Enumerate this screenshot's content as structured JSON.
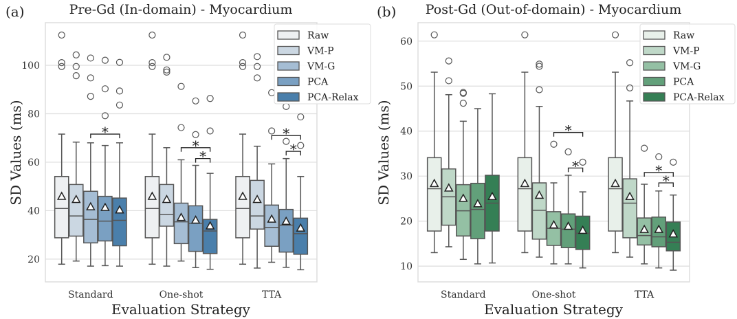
{
  "chart_data": [
    {
      "type": "box",
      "panel_label": "(a)",
      "title": "Pre-Gd (In-domain) - Myocardium",
      "xlabel": "Evaluation Strategy",
      "ylabel": "SD Values (ms)",
      "ylim": [
        10.6,
        117.6
      ],
      "yticks": [
        20,
        40,
        60,
        80,
        100
      ],
      "grid": true,
      "legend": "top-right",
      "categories": [
        "Standard",
        "One-shot",
        "TTA"
      ],
      "colors": [
        "#eef0f2",
        "#cbd7e2",
        "#a5bdd4",
        "#7aa0c2",
        "#4a7fab"
      ],
      "series": [
        {
          "name": "Raw",
          "values": [
            {
              "whislo": 17.9,
              "q1": 28.8,
              "med": 40.9,
              "q3": 54.1,
              "whishi": 71.6,
              "mean": 45.8,
              "fliers": [
                112.5,
                101.1,
                99.5
              ]
            },
            {
              "whislo": 17.9,
              "q1": 28.8,
              "med": 40.9,
              "q3": 54.1,
              "whishi": 71.6,
              "mean": 45.8,
              "fliers": [
                112.5,
                101.1,
                99.5
              ]
            },
            {
              "whislo": 17.9,
              "q1": 28.8,
              "med": 40.9,
              "q3": 54.1,
              "whishi": 71.6,
              "mean": 45.8,
              "fliers": [
                112.5,
                101.1,
                99.5
              ]
            }
          ]
        },
        {
          "name": "VM-P",
          "values": [
            {
              "whislo": 19.2,
              "q1": 29.5,
              "med": 37.8,
              "q3": 50.8,
              "whishi": 68.3,
              "mean": 44.5,
              "fliers": [
                104.3,
                99.5,
                95.7
              ]
            },
            {
              "whislo": 17.1,
              "q1": 33.6,
              "med": 38.5,
              "q3": 50.8,
              "whishi": 66.0,
              "mean": 44.5,
              "fliers": [
                103.3,
                98.1,
                97.2
              ]
            },
            {
              "whislo": 16.3,
              "q1": 32.4,
              "med": 37.8,
              "q3": 52.5,
              "whishi": 66.6,
              "mean": 44.5,
              "fliers": [
                103.6,
                99.5,
                94.8
              ]
            }
          ]
        },
        {
          "name": "VM-G",
          "values": [
            {
              "whislo": 17.1,
              "q1": 26.7,
              "med": 36.4,
              "q3": 48.0,
              "whishi": 68.0,
              "mean": 41.5,
              "fliers": [
                103.0,
                94.8,
                87.2
              ]
            },
            {
              "whislo": 19.2,
              "q1": 26.4,
              "med": 35.4,
              "q3": 43.1,
              "whishi": 61.0,
              "mean": 37.1,
              "fliers": [
                91.3,
                74.3
              ]
            },
            {
              "whislo": 18.7,
              "q1": 25.3,
              "med": 33.1,
              "q3": 42.3,
              "whishi": 59.3,
              "mean": 36.4,
              "fliers": [
                88.7,
                72.9
              ]
            }
          ]
        },
        {
          "name": "PCA",
          "values": [
            {
              "whislo": 17.3,
              "q1": 27.5,
              "med": 35.7,
              "q3": 45.9,
              "whishi": 66.9,
              "mean": 41.2,
              "fliers": [
                102.1,
                90.3,
                79.2
              ]
            },
            {
              "whislo": 16.5,
              "q1": 23.2,
              "med": 34.8,
              "q3": 42.0,
              "whishi": 58.7,
              "mean": 36.0,
              "fliers": [
                85.3,
                71.4
              ]
            },
            {
              "whislo": 16.6,
              "q1": 22.9,
              "med": 34.0,
              "q3": 40.5,
              "whishi": 61.5,
              "mean": 35.5,
              "fliers": [
                83.0,
                68.6
              ]
            }
          ]
        },
        {
          "name": "PCA-Relax",
          "values": [
            {
              "whislo": 17.1,
              "q1": 25.5,
              "med": 36.0,
              "q3": 45.2,
              "whishi": 68.0,
              "mean": 40.2,
              "fliers": [
                101.2,
                89.4,
                83.6
              ]
            },
            {
              "whislo": 15.8,
              "q1": 22.3,
              "med": 31.6,
              "q3": 36.4,
              "whishi": 55.4,
              "mean": 33.6,
              "fliers": [
                86.3,
                72.9
              ]
            },
            {
              "whislo": 15.6,
              "q1": 22.0,
              "med": 30.5,
              "q3": 36.9,
              "whishi": 54.1,
              "mean": 32.7,
              "fliers": [
                78.7,
                66.9
              ]
            }
          ]
        }
      ],
      "significance": [
        {
          "category": "Standard",
          "from": "VM-G",
          "to": "PCA-Relax",
          "y": 71.6,
          "label": "*"
        },
        {
          "category": "One-shot",
          "from": "VM-G",
          "to": "PCA-Relax",
          "y": 66.0,
          "label": "*"
        },
        {
          "category": "One-shot",
          "from": "PCA",
          "to": "PCA-Relax",
          "y": 61.5,
          "label": "*"
        },
        {
          "category": "TTA",
          "from": "VM-G",
          "to": "PCA-Relax",
          "y": 71.0,
          "label": "*"
        },
        {
          "category": "TTA",
          "from": "PCA",
          "to": "PCA-Relax",
          "y": 64.5,
          "label": "*"
        }
      ]
    },
    {
      "type": "box",
      "panel_label": "(b)",
      "title": "Post-Gd (Out-of-domain) - Myocardium",
      "xlabel": "Evaluation Strategy",
      "ylabel": "SD Values (ms)",
      "ylim": [
        6.5,
        64.1
      ],
      "yticks": [
        10,
        20,
        30,
        40,
        50,
        60
      ],
      "grid": true,
      "legend": "top-right",
      "categories": [
        "Standard",
        "One-shot",
        "TTA"
      ],
      "colors": [
        "#e8f0ea",
        "#bfd8c8",
        "#94c0a4",
        "#62a07a",
        "#357f55"
      ],
      "series": [
        {
          "name": "Raw",
          "values": [
            {
              "whislo": 13.0,
              "q1": 17.8,
              "med": 27.2,
              "q3": 34.1,
              "whishi": 53.1,
              "mean": 28.3,
              "fliers": [
                61.4
              ]
            },
            {
              "whislo": 13.0,
              "q1": 17.8,
              "med": 27.2,
              "q3": 34.1,
              "whishi": 53.1,
              "mean": 28.3,
              "fliers": [
                61.4
              ]
            },
            {
              "whislo": 13.0,
              "q1": 17.8,
              "med": 27.2,
              "q3": 34.1,
              "whishi": 53.1,
              "mean": 28.3,
              "fliers": [
                61.4
              ]
            }
          ]
        },
        {
          "name": "VM-P",
          "values": [
            {
              "whislo": 14.3,
              "q1": 19.1,
              "med": 25.4,
              "q3": 31.6,
              "whishi": 48.1,
              "mean": 27.3,
              "fliers": [
                55.6,
                51.2
              ]
            },
            {
              "whislo": 12.0,
              "q1": 16.0,
              "med": 22.4,
              "q3": 28.5,
              "whishi": 45.5,
              "mean": 25.7,
              "fliers": [
                54.9,
                54.4,
                49.2
              ]
            },
            {
              "whislo": 12.0,
              "q1": 16.3,
              "med": 24.0,
              "q3": 29.4,
              "whishi": 46.7,
              "mean": 25.4,
              "fliers": [
                55.2,
                49.6
              ]
            }
          ]
        },
        {
          "name": "VM-G",
          "values": [
            {
              "whislo": 11.5,
              "q1": 16.7,
              "med": 22.3,
              "q3": 28.1,
              "whishi": 42.2,
              "mean": 25.0,
              "fliers": [
                48.6,
                48.4,
                46.2
              ]
            },
            {
              "whislo": 10.5,
              "q1": 14.6,
              "med": 18.4,
              "q3": 22.1,
              "whishi": 28.5,
              "mean": 19.1,
              "fliers": [
                37.1
              ]
            },
            {
              "whislo": 10.5,
              "q1": 14.7,
              "med": 16.8,
              "q3": 20.7,
              "whishi": 28.2,
              "mean": 18.1,
              "fliers": [
                36.2
              ]
            }
          ]
        },
        {
          "name": "PCA",
          "values": [
            {
              "whislo": 10.5,
              "q1": 16.1,
              "med": 22.6,
              "q3": 28.4,
              "whishi": 45.0,
              "mean": 23.8,
              "fliers": []
            },
            {
              "whislo": 10.5,
              "q1": 14.1,
              "med": 18.2,
              "q3": 21.6,
              "whishi": 30.2,
              "mean": 18.8,
              "fliers": [
                35.4
              ]
            },
            {
              "whislo": 9.6,
              "q1": 14.3,
              "med": 16.5,
              "q3": 20.9,
              "whishi": 26.7,
              "mean": 18.1,
              "fliers": [
                34.3
              ]
            }
          ]
        },
        {
          "name": "PCA-Relax",
          "values": [
            {
              "whislo": 10.7,
              "q1": 17.8,
              "med": 24.0,
              "q3": 30.2,
              "whishi": 48.3,
              "mean": 25.4,
              "fliers": []
            },
            {
              "whislo": 9.6,
              "q1": 13.7,
              "med": 17.3,
              "q3": 21.1,
              "whishi": 26.5,
              "mean": 17.9,
              "fliers": [
                33.1
              ]
            },
            {
              "whislo": 9.1,
              "q1": 13.4,
              "med": 15.3,
              "q3": 19.8,
              "whishi": 25.8,
              "mean": 17.1,
              "fliers": [
                33.1
              ]
            }
          ]
        }
      ],
      "significance": [
        {
          "category": "One-shot",
          "from": "VM-G",
          "to": "PCA-Relax",
          "y": 39.7,
          "label": "*"
        },
        {
          "category": "One-shot",
          "from": "PCA",
          "to": "PCA-Relax",
          "y": 31.8,
          "label": "*"
        },
        {
          "category": "TTA",
          "from": "VM-G",
          "to": "PCA-Relax",
          "y": 30.8,
          "label": "*"
        },
        {
          "category": "TTA",
          "from": "PCA",
          "to": "PCA-Relax",
          "y": 28.5,
          "label": "*"
        }
      ]
    }
  ]
}
